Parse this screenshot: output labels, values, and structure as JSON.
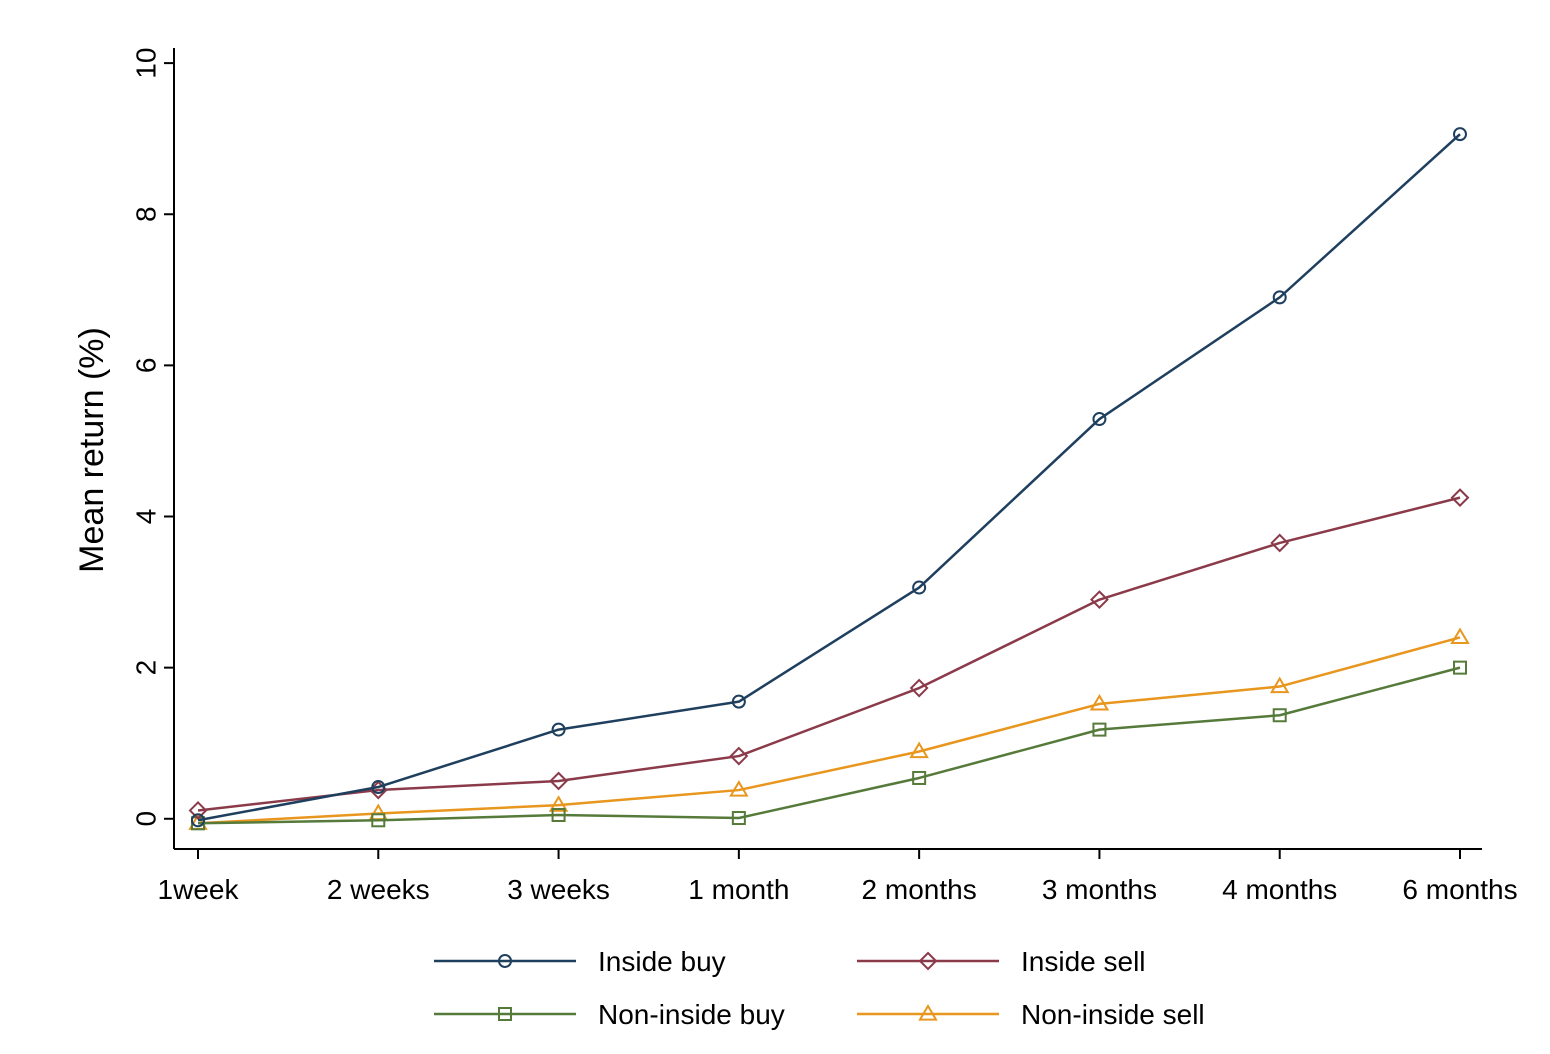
{
  "chart_data": {
    "type": "line",
    "title": "",
    "xlabel": "",
    "ylabel": "Mean return (%)",
    "categories": [
      "1week",
      "2 weeks",
      "3 weeks",
      "1 month",
      "2 months",
      "3 months",
      "4 months",
      "6 months"
    ],
    "ylim": [
      -0.4,
      10.2
    ],
    "yticks": [
      0,
      2,
      4,
      6,
      8,
      10
    ],
    "ytick_labels": [
      "0",
      "2",
      "4",
      "6",
      "8",
      "10"
    ],
    "grid": false,
    "legend_position": "bottom",
    "series": [
      {
        "name": "Inside buy",
        "marker": "circle",
        "color": "#1f3f5f",
        "values": [
          -0.02,
          0.42,
          1.18,
          1.55,
          3.06,
          5.29,
          6.9,
          9.06
        ]
      },
      {
        "name": "Inside sell",
        "marker": "diamond",
        "color": "#8b3a4a",
        "values": [
          0.11,
          0.38,
          0.5,
          0.83,
          1.73,
          2.9,
          3.65,
          4.25
        ]
      },
      {
        "name": "Non-inside buy",
        "marker": "square",
        "color": "#567a3a",
        "values": [
          -0.06,
          -0.02,
          0.05,
          0.01,
          0.54,
          1.18,
          1.37,
          2.0
        ]
      },
      {
        "name": "Non-inside sell",
        "marker": "triangle",
        "color": "#e8961e",
        "values": [
          -0.06,
          0.07,
          0.18,
          0.38,
          0.89,
          1.52,
          1.75,
          2.4
        ]
      }
    ]
  }
}
